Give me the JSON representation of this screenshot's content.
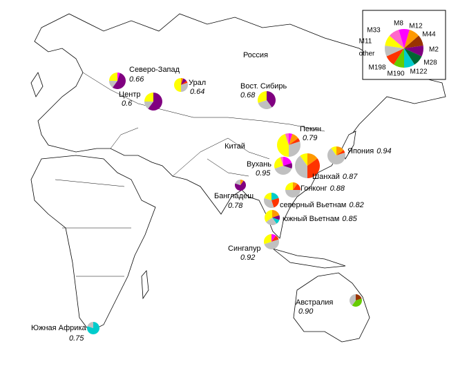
{
  "map": {
    "groups": [
      {
        "name": "M8",
        "color": "#ff00ff"
      },
      {
        "name": "M12",
        "color": "#ff9900"
      },
      {
        "name": "M44",
        "color": "#993300"
      },
      {
        "name": "M2",
        "color": "#800080"
      },
      {
        "name": "M28",
        "color": "#006633"
      },
      {
        "name": "M122",
        "color": "#00cccc"
      },
      {
        "name": "M190",
        "color": "#66cc00"
      },
      {
        "name": "M198",
        "color": "#ff3300"
      },
      {
        "name": "other",
        "color": "#c0c0c0"
      },
      {
        "name": "M11",
        "color": "#ffff00"
      },
      {
        "name": "M33",
        "color": "#ff66cc"
      }
    ],
    "labels": [
      "Россия",
      "Китай"
    ],
    "regions": [
      {
        "name": "Северо-Запад",
        "diversity": "0.66",
        "shares": [
          5,
          0,
          0,
          55,
          0,
          0,
          0,
          0,
          15,
          25,
          0
        ]
      },
      {
        "name": "Центр",
        "diversity": "0.6",
        "shares": [
          0,
          0,
          0,
          60,
          0,
          0,
          0,
          0,
          15,
          25,
          0
        ]
      },
      {
        "name": "Урал",
        "diversity": "0.64",
        "shares": [
          0,
          5,
          0,
          10,
          0,
          0,
          0,
          5,
          30,
          50,
          0
        ]
      },
      {
        "name": "Вост. Сибирь",
        "diversity": "0.68",
        "shares": [
          0,
          0,
          0,
          40,
          0,
          0,
          0,
          0,
          30,
          30,
          0
        ]
      },
      {
        "name": "Пекин",
        "diversity": "0.79",
        "shares": [
          5,
          10,
          0,
          0,
          0,
          0,
          0,
          5,
          30,
          45,
          5
        ]
      },
      {
        "name": "Япония",
        "diversity": "0.94",
        "shares": [
          0,
          15,
          0,
          0,
          0,
          0,
          0,
          5,
          70,
          10,
          0
        ]
      },
      {
        "name": "Вухань",
        "diversity": "0.95",
        "shares": [
          20,
          0,
          0,
          10,
          0,
          0,
          0,
          0,
          40,
          25,
          5
        ]
      },
      {
        "name": "Шанхай",
        "diversity": "0.87",
        "shares": [
          0,
          15,
          0,
          0,
          0,
          0,
          0,
          35,
          40,
          10,
          0
        ]
      },
      {
        "name": "Гонконг",
        "diversity": "0.88",
        "shares": [
          0,
          10,
          0,
          0,
          0,
          0,
          0,
          15,
          50,
          25,
          0
        ]
      },
      {
        "name": "Бангладеш",
        "diversity": "0.78",
        "shares": [
          0,
          10,
          0,
          70,
          0,
          0,
          0,
          0,
          20,
          0,
          0
        ]
      },
      {
        "name": "северный Вьетнам",
        "diversity": "0.82",
        "shares": [
          0,
          0,
          0,
          0,
          0,
          20,
          0,
          25,
          35,
          20,
          0
        ]
      },
      {
        "name": "южный Вьетнам",
        "diversity": "0.85",
        "shares": [
          0,
          20,
          0,
          10,
          0,
          10,
          0,
          0,
          25,
          35,
          0
        ]
      },
      {
        "name": "Сингапур",
        "diversity": "0.92",
        "shares": [
          10,
          0,
          0,
          0,
          0,
          0,
          0,
          10,
          50,
          30,
          0
        ]
      },
      {
        "name": "Австралия",
        "diversity": "0.90",
        "shares": [
          0,
          0,
          20,
          0,
          0,
          0,
          40,
          0,
          40,
          0,
          0
        ]
      },
      {
        "name": "Южная Африка",
        "diversity": "0.75",
        "shares": [
          0,
          0,
          0,
          0,
          0,
          80,
          0,
          0,
          20,
          0,
          0
        ]
      }
    ]
  }
}
